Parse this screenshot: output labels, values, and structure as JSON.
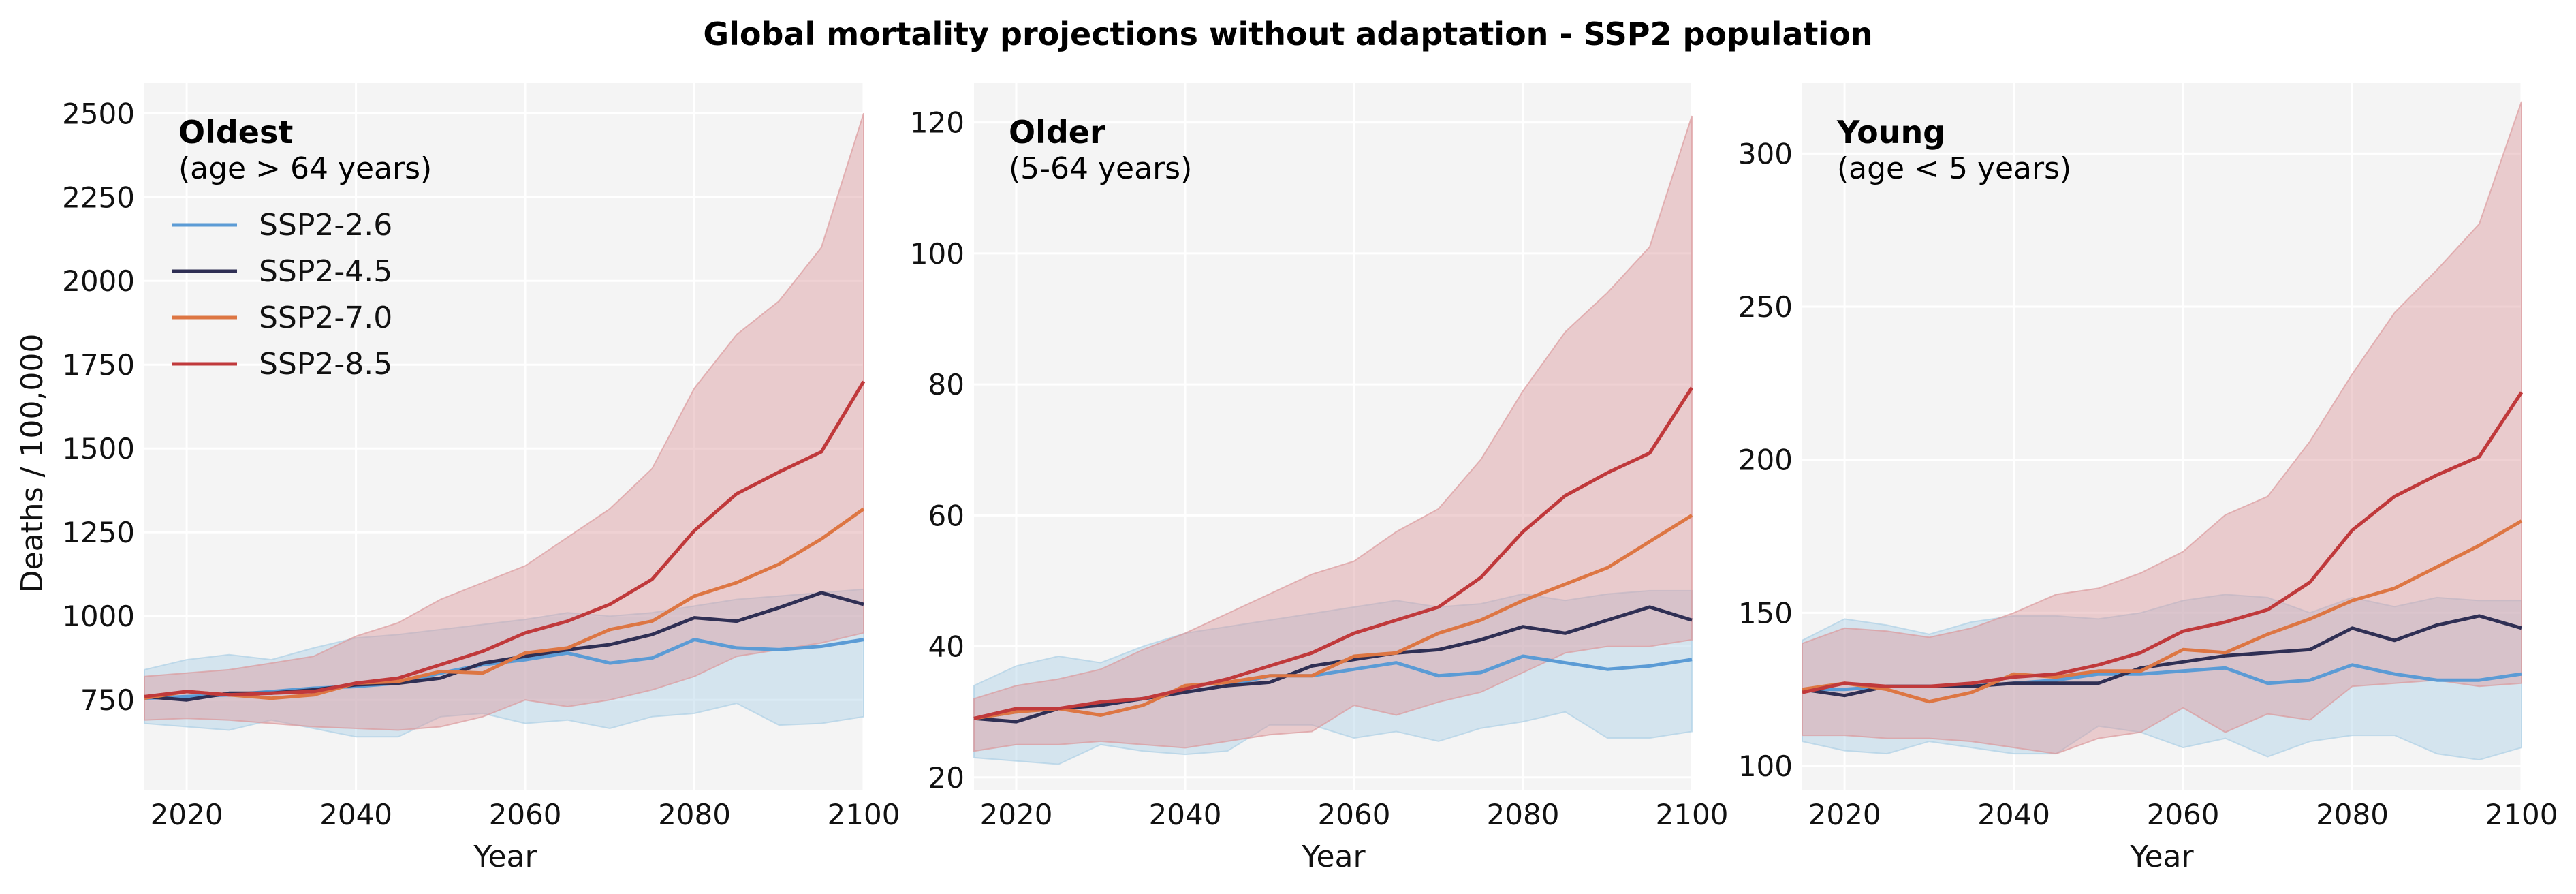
{
  "figure": {
    "title": "Global mortality projections without adaptation - SSP2 population"
  },
  "colors": {
    "SSP2-2.6": "#5b9bd5",
    "SSP2-4.5": "#2f2f54",
    "SSP2-7.0": "#dd7643",
    "SSP2-8.5": "#c0393b",
    "band_low": "#aed0e6",
    "band_high": "#dc9a9d",
    "panel_bg": "#f4f4f4",
    "grid": "#ffffff"
  },
  "chart_data": [
    {
      "type": "line",
      "panel_title": "Oldest",
      "panel_subtitle": "(age > 64 years)",
      "xlabel": "Year",
      "ylabel": "Deaths / 100,000",
      "xlim": [
        2015,
        2100
      ],
      "ylim": [
        480,
        2590
      ],
      "xticks": [
        2020,
        2040,
        2060,
        2080,
        2100
      ],
      "yticks": [
        750,
        1000,
        1250,
        1500,
        1750,
        2000,
        2250,
        2500
      ],
      "legend": {
        "placement": "upper-left",
        "entries": [
          "SSP2-2.6",
          "SSP2-4.5",
          "SSP2-7.0",
          "SSP2-8.5"
        ]
      },
      "x": [
        2015,
        2020,
        2025,
        2030,
        2035,
        2040,
        2045,
        2050,
        2055,
        2060,
        2065,
        2070,
        2075,
        2080,
        2085,
        2090,
        2095,
        2100
      ],
      "series": [
        {
          "name": "SSP2-2.6",
          "values": [
            755,
            760,
            765,
            775,
            785,
            790,
            800,
            830,
            855,
            870,
            890,
            860,
            875,
            930,
            905,
            900,
            910,
            930
          ]
        },
        {
          "name": "SSP2-4.5",
          "values": [
            760,
            750,
            770,
            770,
            780,
            795,
            800,
            815,
            860,
            880,
            900,
            915,
            945,
            995,
            985,
            1025,
            1070,
            1035
          ]
        },
        {
          "name": "SSP2-7.0",
          "values": [
            755,
            775,
            765,
            755,
            765,
            800,
            805,
            835,
            830,
            890,
            905,
            960,
            985,
            1060,
            1100,
            1155,
            1230,
            1320
          ]
        },
        {
          "name": "SSP2-8.5",
          "values": [
            760,
            775,
            765,
            770,
            775,
            800,
            815,
            855,
            895,
            950,
            985,
            1035,
            1110,
            1255,
            1365,
            1430,
            1490,
            1700
          ]
        }
      ],
      "bands": [
        {
          "name": "SSP2-2.6",
          "upper": [
            840,
            870,
            885,
            870,
            905,
            935,
            945,
            960,
            975,
            990,
            1010,
            1000,
            1010,
            1030,
            1050,
            1060,
            1070,
            1080
          ],
          "lower": [
            680,
            670,
            660,
            690,
            665,
            640,
            640,
            700,
            710,
            680,
            690,
            665,
            700,
            710,
            740,
            675,
            680,
            700
          ]
        },
        {
          "name": "SSP2-8.5",
          "upper": [
            820,
            830,
            840,
            860,
            880,
            940,
            980,
            1050,
            1100,
            1150,
            1235,
            1320,
            1440,
            1680,
            1840,
            1940,
            2100,
            2500
          ],
          "lower": [
            690,
            695,
            690,
            680,
            670,
            665,
            660,
            670,
            700,
            750,
            730,
            750,
            780,
            820,
            880,
            900,
            920,
            950
          ]
        }
      ]
    },
    {
      "type": "line",
      "panel_title": "Older",
      "panel_subtitle": "(5-64 years)",
      "xlabel": "Year",
      "ylabel": "",
      "xlim": [
        2015,
        2100
      ],
      "ylim": [
        18,
        126
      ],
      "xticks": [
        2020,
        2040,
        2060,
        2080,
        2100
      ],
      "yticks": [
        20,
        40,
        60,
        80,
        100,
        120
      ],
      "x": [
        2015,
        2020,
        2025,
        2030,
        2035,
        2040,
        2045,
        2050,
        2055,
        2060,
        2065,
        2070,
        2075,
        2080,
        2085,
        2090,
        2095,
        2100
      ],
      "series": [
        {
          "name": "SSP2-2.6",
          "values": [
            29,
            30,
            30.5,
            31,
            32,
            33,
            34,
            35.5,
            35.5,
            36.5,
            37.5,
            35.5,
            36,
            38.5,
            37.5,
            36.5,
            37,
            38
          ]
        },
        {
          "name": "SSP2-4.5",
          "values": [
            29,
            28.5,
            30.5,
            31,
            32,
            33,
            34,
            34.5,
            37,
            38,
            39,
            39.5,
            41,
            43,
            42,
            44,
            46,
            44
          ]
        },
        {
          "name": "SSP2-7.0",
          "values": [
            29,
            30,
            30.5,
            29.5,
            31,
            34,
            34.5,
            35.5,
            35.5,
            38.5,
            39,
            42,
            44,
            47,
            49.5,
            52,
            56,
            60
          ]
        },
        {
          "name": "SSP2-8.5",
          "values": [
            29,
            30.5,
            30.5,
            31.5,
            32,
            33.5,
            35,
            37,
            39,
            42,
            44,
            46,
            50.5,
            57.5,
            63,
            66.5,
            69.5,
            79.5
          ]
        }
      ],
      "bands": [
        {
          "name": "SSP2-2.6",
          "upper": [
            34,
            37,
            38.5,
            37.5,
            40,
            42,
            43,
            44,
            45,
            46,
            47,
            46,
            46.5,
            48,
            47,
            48,
            48.5,
            48.5
          ],
          "lower": [
            23,
            22.5,
            22,
            25,
            24,
            23.5,
            24,
            28,
            28,
            26,
            27,
            25.5,
            27.5,
            28.5,
            30,
            26,
            26,
            27
          ]
        },
        {
          "name": "SSP2-8.5",
          "upper": [
            32,
            34,
            35,
            36.5,
            39.5,
            42,
            45,
            48,
            51,
            53,
            57.5,
            61,
            68.5,
            79,
            88,
            94,
            101,
            121
          ]
        },
        {
          "name": "SSP2-8.5-lower",
          "lower": [
            24,
            25,
            25,
            25.5,
            25,
            24.5,
            25.5,
            26.5,
            27,
            31,
            29.5,
            31.5,
            33,
            36,
            39,
            40,
            40,
            41
          ]
        }
      ]
    },
    {
      "type": "line",
      "panel_title": "Young",
      "panel_subtitle": "(age < 5 years)",
      "xlabel": "Year",
      "ylabel": "",
      "xlim": [
        2015,
        2100
      ],
      "ylim": [
        92,
        323
      ],
      "xticks": [
        2020,
        2040,
        2060,
        2080,
        2100
      ],
      "yticks": [
        100,
        150,
        200,
        250,
        300
      ],
      "x": [
        2015,
        2020,
        2025,
        2030,
        2035,
        2040,
        2045,
        2050,
        2055,
        2060,
        2065,
        2070,
        2075,
        2080,
        2085,
        2090,
        2095,
        2100
      ],
      "series": [
        {
          "name": "SSP2-2.6",
          "values": [
            125,
            125,
            126,
            126,
            126,
            127,
            128,
            130,
            130,
            131,
            132,
            127,
            128,
            133,
            130,
            128,
            128,
            130
          ]
        },
        {
          "name": "SSP2-4.5",
          "values": [
            125,
            123,
            126,
            126,
            126,
            127,
            127,
            127,
            132,
            134,
            136,
            137,
            138,
            145,
            141,
            146,
            149,
            145
          ]
        },
        {
          "name": "SSP2-7.0",
          "values": [
            125,
            127,
            125,
            121,
            124,
            130,
            129,
            131,
            131,
            138,
            137,
            143,
            148,
            154,
            158,
            165,
            172,
            180
          ]
        },
        {
          "name": "SSP2-8.5",
          "values": [
            124,
            127,
            126,
            126,
            127,
            129,
            130,
            133,
            137,
            144,
            147,
            151,
            160,
            177,
            188,
            195,
            201,
            222
          ]
        }
      ],
      "bands": [
        {
          "name": "SSP2-2.6",
          "upper": [
            141,
            148,
            146,
            143,
            147,
            149,
            149,
            148,
            150,
            154,
            156,
            155,
            150,
            155,
            152,
            155,
            154,
            154
          ],
          "lower": [
            108,
            105,
            104,
            108,
            106,
            104,
            104,
            113,
            111,
            106,
            109,
            103,
            108,
            110,
            110,
            104,
            102,
            106
          ]
        },
        {
          "name": "SSP2-8.5",
          "upper": [
            140,
            145,
            144,
            142,
            145,
            150,
            156,
            158,
            163,
            170,
            182,
            188,
            206,
            228,
            248,
            262,
            277,
            317
          ]
        },
        {
          "name": "SSP2-8.5-lower",
          "lower": [
            110,
            110,
            109,
            109,
            108,
            106,
            104,
            109,
            111,
            119,
            111,
            117,
            115,
            126,
            127,
            128,
            126,
            127
          ]
        }
      ]
    }
  ]
}
